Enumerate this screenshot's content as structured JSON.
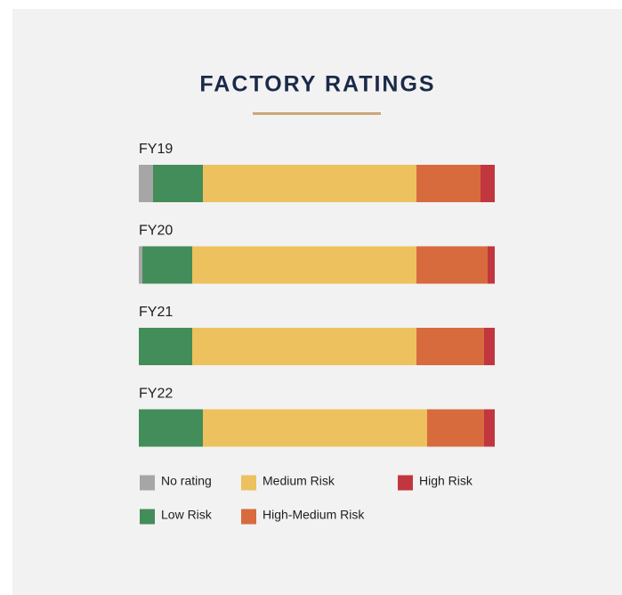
{
  "chart_data": {
    "type": "stacked-bar-horizontal",
    "title": "FACTORY RATINGS",
    "categories": [
      "FY19",
      "FY20",
      "FY21",
      "FY22"
    ],
    "xlim": [
      0,
      100
    ],
    "series": [
      {
        "name": "No rating",
        "color": "#a6a6a6",
        "values": [
          4,
          1,
          0,
          0
        ]
      },
      {
        "name": "Low Risk",
        "color": "#438d5a",
        "values": [
          14,
          14,
          15,
          18
        ]
      },
      {
        "name": "Medium Risk",
        "color": "#ecc15e",
        "values": [
          60,
          63,
          63,
          63
        ]
      },
      {
        "name": "High-Medium Risk",
        "color": "#d76b3e",
        "values": [
          18,
          20,
          19,
          16
        ]
      },
      {
        "name": "High Risk",
        "color": "#c2363f",
        "values": [
          4,
          2,
          3,
          3
        ]
      }
    ]
  }
}
